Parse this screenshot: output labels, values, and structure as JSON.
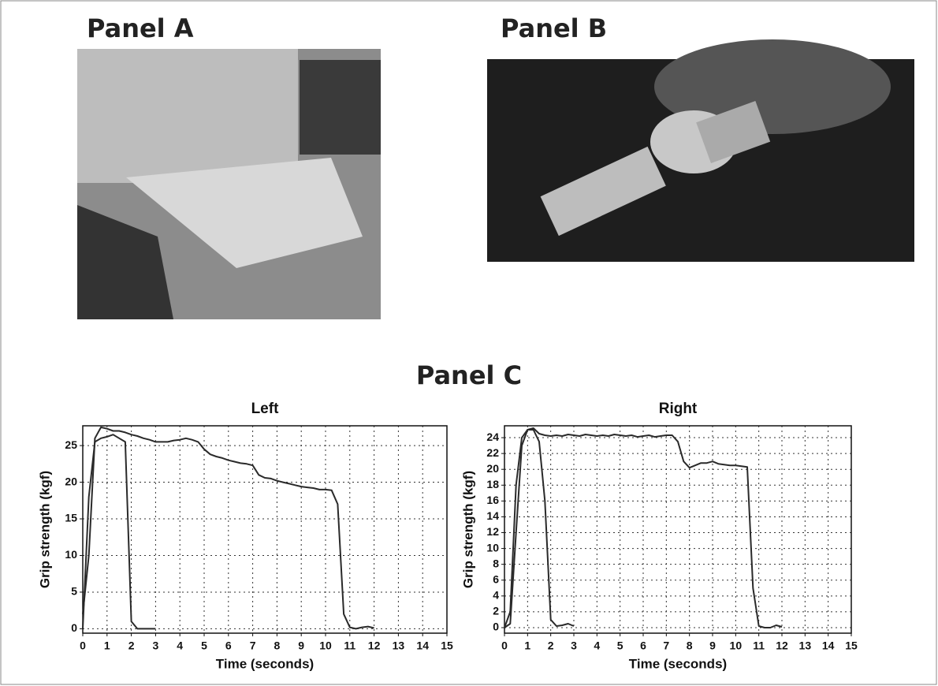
{
  "panels": {
    "a": {
      "label": "Panel A"
    },
    "b": {
      "label": "Panel B"
    },
    "c": {
      "label": "Panel C"
    }
  },
  "chart_data": [
    {
      "type": "line",
      "title": "Left",
      "xlabel": "Time (seconds)",
      "ylabel": "Grip strength (kgf)",
      "x": [
        0,
        0.25,
        0.5,
        0.75,
        1,
        1.25,
        1.5,
        1.75,
        2,
        2.25,
        2.5,
        2.75,
        3,
        3.25,
        3.5,
        3.75,
        4,
        4.25,
        4.5,
        4.75,
        5,
        5.25,
        5.5,
        5.75,
        6,
        6.25,
        6.5,
        6.75,
        7,
        7.25,
        7.5,
        7.75,
        8,
        8.25,
        8.5,
        8.75,
        9,
        9.25,
        9.5,
        9.75,
        10,
        10.25,
        10.5,
        10.75,
        11,
        11.25,
        11.5,
        11.75,
        12
      ],
      "series": [
        {
          "color": "#2a2a2a",
          "values": [
            2,
            10,
            26,
            27.5,
            27.3,
            27,
            27,
            26.8,
            26.5,
            26.3,
            26,
            25.8,
            25.5,
            25.5,
            25.5,
            25.7,
            25.8,
            26,
            25.8,
            25.5,
            24.5,
            23.8,
            23.5,
            23.3,
            23,
            22.8,
            22.6,
            22.5,
            22.3,
            21,
            20.6,
            20.5,
            20.2,
            20,
            19.8,
            19.6,
            19.4,
            19.3,
            19.2,
            19,
            19,
            18.9,
            17,
            2,
            0.2,
            0,
            0.2,
            0.3,
            0.1
          ]
        },
        {
          "color": "#2a2a2a",
          "values": [
            0,
            18,
            25.5,
            26,
            26.2,
            26.5,
            26,
            25.5,
            1,
            0,
            0,
            0,
            0,
            null,
            null,
            null,
            null,
            null,
            null,
            null,
            null,
            null,
            null,
            null,
            null,
            null,
            null,
            null,
            null,
            null,
            null,
            null,
            null,
            null,
            null,
            null,
            null,
            null,
            null,
            null,
            null,
            null,
            null,
            null,
            null,
            null,
            null,
            null,
            null
          ]
        }
      ],
      "xlim": [
        0,
        15
      ],
      "xticks": [
        0,
        1,
        2,
        3,
        4,
        5,
        6,
        7,
        8,
        9,
        10,
        11,
        12,
        13,
        14,
        15
      ],
      "ylim": [
        -0.6,
        27.7
      ],
      "yticks": [
        0,
        5,
        10,
        15,
        20,
        25
      ],
      "grid": true
    },
    {
      "type": "line",
      "title": "Right",
      "xlabel": "Time (seconds)",
      "ylabel": "Grip strength (kgf)",
      "x": [
        0,
        0.25,
        0.5,
        0.75,
        1,
        1.25,
        1.5,
        1.75,
        2,
        2.25,
        2.5,
        2.75,
        3,
        3.25,
        3.5,
        3.75,
        4,
        4.25,
        4.5,
        4.75,
        5,
        5.25,
        5.5,
        5.75,
        6,
        6.25,
        6.5,
        6.75,
        7,
        7.25,
        7.5,
        7.75,
        8,
        8.25,
        8.5,
        8.75,
        9,
        9.25,
        9.5,
        9.75,
        10,
        10.25,
        10.5,
        10.75,
        11,
        11.25,
        11.5,
        11.75,
        12
      ],
      "series": [
        {
          "color": "#2a2a2a",
          "values": [
            0,
            0.5,
            12,
            23,
            25,
            25.2,
            24.5,
            24.3,
            24.2,
            24.3,
            24.2,
            24.4,
            24.3,
            24.2,
            24.4,
            24.3,
            24.2,
            24.3,
            24.2,
            24.4,
            24.3,
            24.2,
            24.3,
            24.1,
            24.2,
            24.3,
            24.1,
            24.2,
            24.3,
            24.3,
            23.5,
            21,
            20.2,
            20.5,
            20.8,
            20.8,
            21,
            20.7,
            20.6,
            20.5,
            20.5,
            20.4,
            20.3,
            5,
            0.2,
            0,
            0,
            0.3,
            0.1
          ]
        },
        {
          "color": "#2a2a2a",
          "values": [
            0,
            2,
            18,
            24,
            25,
            25,
            23.5,
            16,
            1,
            0.2,
            0.3,
            0.5,
            0.2,
            null,
            null,
            null,
            null,
            null,
            null,
            null,
            null,
            null,
            null,
            null,
            null,
            null,
            null,
            null,
            null,
            null,
            null,
            null,
            null,
            null,
            null,
            null,
            null,
            null,
            null,
            null,
            null,
            null,
            null,
            null,
            null,
            null,
            null,
            null,
            null
          ]
        }
      ],
      "xlim": [
        0,
        15
      ],
      "xticks": [
        0,
        1,
        2,
        3,
        4,
        5,
        6,
        7,
        8,
        9,
        10,
        11,
        12,
        13,
        14,
        15
      ],
      "ylim": [
        -0.7,
        25.5
      ],
      "yticks": [
        0,
        2,
        4,
        6,
        8,
        10,
        12,
        14,
        16,
        18,
        20,
        22,
        24
      ],
      "grid": true
    }
  ]
}
